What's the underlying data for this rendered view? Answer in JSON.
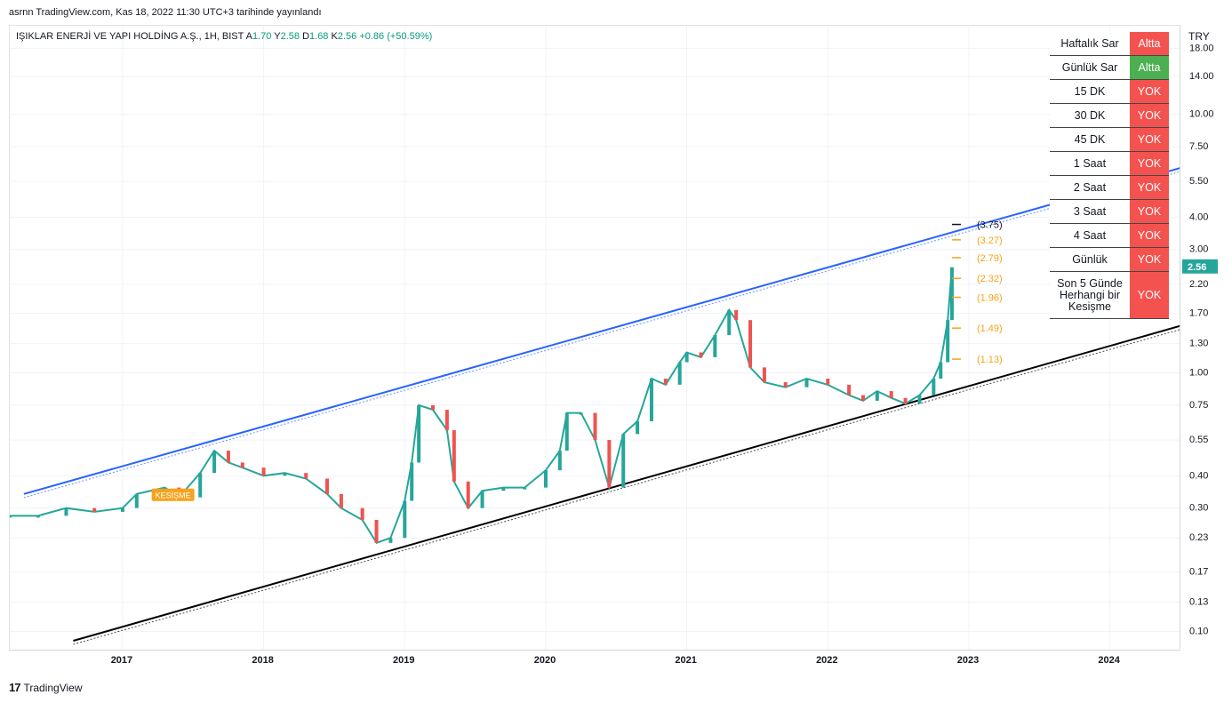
{
  "header": {
    "published": "asrnn TradingView.com, Kas 18, 2022 11:30 UTC+3 tarihinde yayınlandı"
  },
  "symbol": {
    "name": "IŞIKLAR ENERJİ VE YAPI HOLDİNG A.Ş., 1H, BIST",
    "open_label": "A",
    "open": "1.70",
    "high_label": "Y",
    "high": "2.58",
    "low_label": "D",
    "low": "1.68",
    "close_label": "K",
    "close": "2.56",
    "change": "+0.86 (+50.59%)"
  },
  "status_table": {
    "rows": [
      {
        "name": "Haftalık Sar",
        "state": "Altta",
        "color": "#f4524f"
      },
      {
        "name": "Günlük Sar",
        "state": "Altta",
        "color": "#4caf50"
      },
      {
        "name": "15 DK",
        "state": "YOK",
        "color": "#f4524f"
      },
      {
        "name": "30 DK",
        "state": "YOK",
        "color": "#f4524f"
      },
      {
        "name": "45 DK",
        "state": "YOK",
        "color": "#f4524f"
      },
      {
        "name": "1 Saat",
        "state": "YOK",
        "color": "#f4524f"
      },
      {
        "name": "2 Saat",
        "state": "YOK",
        "color": "#f4524f"
      },
      {
        "name": "3 Saat",
        "state": "YOK",
        "color": "#f4524f"
      },
      {
        "name": "4 Saat",
        "state": "YOK",
        "color": "#f4524f"
      },
      {
        "name": "Günlük",
        "state": "YOK",
        "color": "#f4524f"
      },
      {
        "name": "Son 5 Günde Herhangi bir Kesişme",
        "state": "YOK",
        "color": "#f4524f"
      }
    ]
  },
  "chart_data": {
    "type": "line",
    "currency": "TRY",
    "scale": "log",
    "ylim": [
      0.085,
      22
    ],
    "y_ticks": [
      "18.00",
      "14.00",
      "10.00",
      "7.50",
      "5.50",
      "4.00",
      "3.00",
      "2.20",
      "1.70",
      "1.30",
      "1.00",
      "0.75",
      "0.55",
      "0.40",
      "0.30",
      "0.23",
      "0.17",
      "0.13",
      "0.10"
    ],
    "y_tick_values": [
      18.0,
      14.0,
      10.0,
      7.5,
      5.5,
      4.0,
      3.0,
      2.2,
      1.7,
      1.3,
      1.0,
      0.75,
      0.55,
      0.4,
      0.3,
      0.23,
      0.17,
      0.13,
      0.1
    ],
    "x_ticks": [
      "2017",
      "2018",
      "2019",
      "2020",
      "2021",
      "2022",
      "2023",
      "2024"
    ],
    "x_tick_values": [
      2017,
      2018,
      2019,
      2020,
      2021,
      2022,
      2023,
      2024
    ],
    "xlim": [
      2016.2,
      2024.5
    ],
    "last_price": "2.56",
    "last_price_value": 2.56,
    "target_levels": [
      {
        "label": "(3.75)",
        "value": 3.75,
        "color": "#131722"
      },
      {
        "label": "(3.27)",
        "value": 3.27,
        "color": "#f7a21b"
      },
      {
        "label": "(2.79)",
        "value": 2.79,
        "color": "#f7a21b"
      },
      {
        "label": "(2.32)",
        "value": 2.32,
        "color": "#f7a21b"
      },
      {
        "label": "(1.96)",
        "value": 1.96,
        "color": "#f7a21b"
      },
      {
        "label": "(1.49)",
        "value": 1.49,
        "color": "#f7a21b"
      },
      {
        "label": "(1.13)",
        "value": 1.13,
        "color": "#f7a21b"
      }
    ],
    "upper_channel": {
      "color": "#2962ff",
      "points": [
        [
          2016.3,
          0.34
        ],
        [
          2024.5,
          6.2
        ]
      ]
    },
    "lower_channel": {
      "color": "#000000",
      "points": [
        [
          2016.65,
          0.092
        ],
        [
          2024.5,
          1.52
        ]
      ]
    },
    "annotation_label": "KESİŞME",
    "price_path": [
      [
        2016.2,
        0.28
      ],
      [
        2016.4,
        0.28
      ],
      [
        2016.6,
        0.3
      ],
      [
        2016.8,
        0.29
      ],
      [
        2017.0,
        0.3
      ],
      [
        2017.1,
        0.34
      ],
      [
        2017.3,
        0.36
      ],
      [
        2017.4,
        0.33
      ],
      [
        2017.55,
        0.41
      ],
      [
        2017.65,
        0.5
      ],
      [
        2017.75,
        0.45
      ],
      [
        2017.85,
        0.43
      ],
      [
        2018.0,
        0.4
      ],
      [
        2018.15,
        0.41
      ],
      [
        2018.3,
        0.39
      ],
      [
        2018.45,
        0.34
      ],
      [
        2018.55,
        0.3
      ],
      [
        2018.7,
        0.27
      ],
      [
        2018.8,
        0.22
      ],
      [
        2018.9,
        0.23
      ],
      [
        2019.0,
        0.32
      ],
      [
        2019.05,
        0.45
      ],
      [
        2019.1,
        0.75
      ],
      [
        2019.2,
        0.72
      ],
      [
        2019.3,
        0.6
      ],
      [
        2019.35,
        0.38
      ],
      [
        2019.45,
        0.3
      ],
      [
        2019.55,
        0.35
      ],
      [
        2019.7,
        0.36
      ],
      [
        2019.85,
        0.36
      ],
      [
        2020.0,
        0.42
      ],
      [
        2020.1,
        0.5
      ],
      [
        2020.15,
        0.7
      ],
      [
        2020.25,
        0.7
      ],
      [
        2020.35,
        0.55
      ],
      [
        2020.45,
        0.36
      ],
      [
        2020.55,
        0.58
      ],
      [
        2020.65,
        0.65
      ],
      [
        2020.75,
        0.95
      ],
      [
        2020.85,
        0.9
      ],
      [
        2020.95,
        1.1
      ],
      [
        2021.0,
        1.2
      ],
      [
        2021.1,
        1.15
      ],
      [
        2021.2,
        1.4
      ],
      [
        2021.3,
        1.75
      ],
      [
        2021.35,
        1.6
      ],
      [
        2021.45,
        1.05
      ],
      [
        2021.55,
        0.92
      ],
      [
        2021.7,
        0.88
      ],
      [
        2021.85,
        0.95
      ],
      [
        2022.0,
        0.9
      ],
      [
        2022.15,
        0.82
      ],
      [
        2022.25,
        0.78
      ],
      [
        2022.35,
        0.85
      ],
      [
        2022.45,
        0.8
      ],
      [
        2022.55,
        0.76
      ],
      [
        2022.65,
        0.82
      ],
      [
        2022.75,
        0.95
      ],
      [
        2022.8,
        1.1
      ],
      [
        2022.85,
        1.6
      ],
      [
        2022.88,
        2.56
      ]
    ]
  }
}
